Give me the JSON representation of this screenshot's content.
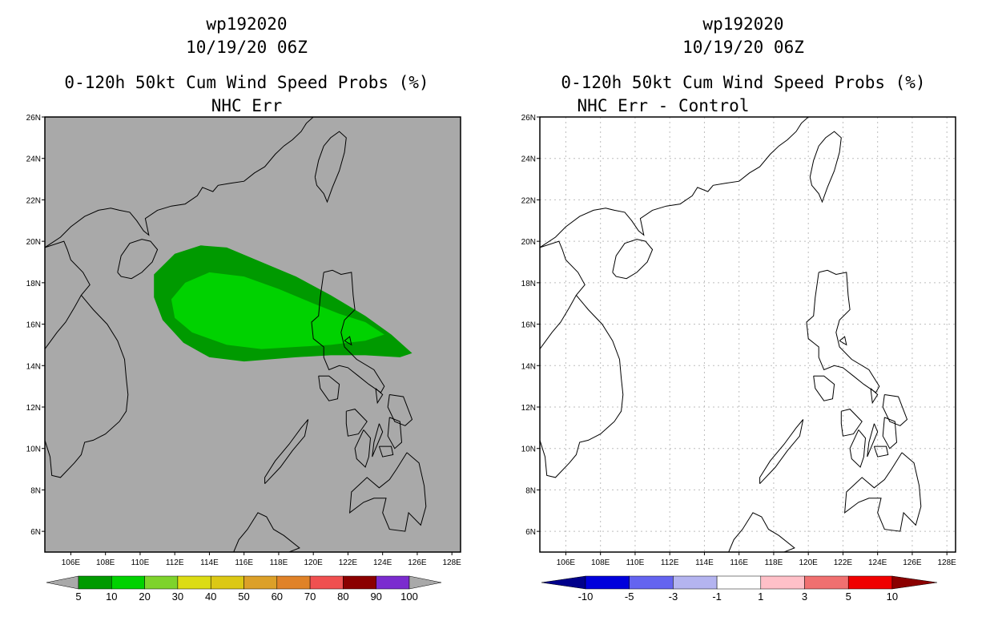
{
  "left": {
    "title_lines": [
      "wp192020",
      "10/19/20 06Z",
      "0-120h 50kt Cum Wind Speed Probs (%)",
      "NHC Err"
    ],
    "legend_labels": [
      "5",
      "10",
      "20",
      "30",
      "40",
      "50",
      "60",
      "70",
      "80",
      "90",
      "100"
    ],
    "legend_colors": [
      "#009a00",
      "#00d200",
      "#7ed32c",
      "#dcdc14",
      "#dcc814",
      "#dca028",
      "#e08228",
      "#f05050",
      "#8b0000",
      "#7b2ccf"
    ]
  },
  "right": {
    "title_lines": [
      "wp192020",
      "10/19/20 06Z",
      "0-120h 50kt Cum Wind Speed Probs (%)",
      "NHC Err - Control"
    ],
    "legend_labels": [
      "-10",
      "-5",
      "-3",
      "-1",
      "1",
      "3",
      "5",
      "10"
    ],
    "legend_colors": [
      "#0000dc",
      "#6464f0",
      "#b4b4f0",
      "#ffffff",
      "#ffc0c8",
      "#f07070",
      "#f00000"
    ]
  },
  "chart_data": [
    {
      "type": "heatmap",
      "title": "0-120h 50kt Cum Wind Speed Probs (%)",
      "subtitle": "NHC Err",
      "storm": "wp192020",
      "time": "10/19/20 06Z",
      "x_ticks": [
        "106E",
        "108E",
        "110E",
        "112E",
        "114E",
        "116E",
        "118E",
        "120E",
        "122E",
        "124E",
        "126E",
        "128E"
      ],
      "y_ticks": [
        "6N",
        "8N",
        "10N",
        "12N",
        "14N",
        "16N",
        "18N",
        "20N",
        "22N",
        "24N",
        "26N"
      ],
      "xlim": [
        104.5,
        128.5
      ],
      "ylim": [
        5,
        26
      ],
      "grid": false,
      "background": "#a9a9a9",
      "contours": [
        {
          "level": 5,
          "color": "#009a00",
          "outline_lonlat": [
            [
              110.8,
              18.4
            ],
            [
              112,
              19.4
            ],
            [
              113.5,
              19.8
            ],
            [
              115,
              19.7
            ],
            [
              117,
              19
            ],
            [
              119,
              18.3
            ],
            [
              121,
              17.4
            ],
            [
              123,
              16.4
            ],
            [
              124.5,
              15.5
            ],
            [
              125.7,
              14.6
            ],
            [
              125,
              14.4
            ],
            [
              123,
              14.5
            ],
            [
              121,
              14.5
            ],
            [
              119,
              14.4
            ],
            [
              116,
              14.2
            ],
            [
              114,
              14.4
            ],
            [
              112.5,
              15.1
            ],
            [
              111.3,
              16.2
            ],
            [
              110.8,
              17.3
            ]
          ]
        },
        {
          "level": 10,
          "color": "#00d200",
          "outline_lonlat": [
            [
              111.8,
              17.2
            ],
            [
              112.6,
              18
            ],
            [
              114,
              18.5
            ],
            [
              116,
              18.3
            ],
            [
              118,
              17.7
            ],
            [
              120,
              17
            ],
            [
              121.5,
              16.5
            ],
            [
              123,
              16.1
            ],
            [
              124.1,
              15.5
            ],
            [
              123,
              15.2
            ],
            [
              121,
              15
            ],
            [
              119,
              14.9
            ],
            [
              117,
              14.8
            ],
            [
              115,
              15
            ],
            [
              113,
              15.6
            ],
            [
              112,
              16.3
            ]
          ]
        }
      ]
    },
    {
      "type": "heatmap",
      "title": "0-120h 50kt Cum Wind Speed Probs (%)",
      "subtitle": "NHC Err - Control",
      "storm": "wp192020",
      "time": "10/19/20 06Z",
      "x_ticks": [
        "106E",
        "108E",
        "110E",
        "112E",
        "114E",
        "116E",
        "118E",
        "120E",
        "122E",
        "124E",
        "126E",
        "128E"
      ],
      "y_ticks": [
        "6N",
        "8N",
        "10N",
        "12N",
        "14N",
        "16N",
        "18N",
        "20N",
        "22N",
        "24N",
        "26N"
      ],
      "xlim": [
        104.5,
        128.5
      ],
      "ylim": [
        5,
        26
      ],
      "grid": true,
      "background": "#ffffff",
      "contours": []
    }
  ]
}
